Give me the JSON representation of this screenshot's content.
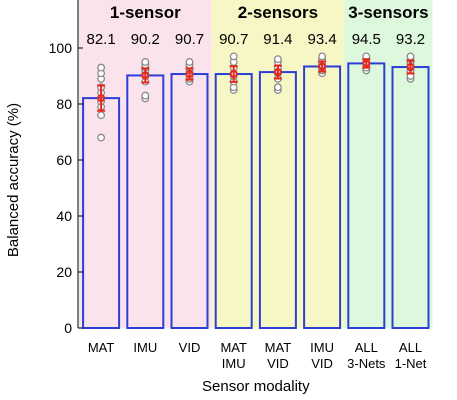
{
  "chart_data": {
    "type": "bar",
    "xlabel": "Sensor modality",
    "ylabel": "Balanced accuracy (%)",
    "ylim": [
      0,
      100
    ],
    "yticks": [
      0,
      20,
      40,
      60,
      80,
      100
    ],
    "grid": false,
    "groups": [
      {
        "title": "1-sensor",
        "first": 0,
        "last": 2,
        "color": "#fbe3ee"
      },
      {
        "title": "2-sensors",
        "first": 3,
        "last": 5,
        "color": "#f7f7c6"
      },
      {
        "title": "3-sensors",
        "first": 6,
        "last": 7,
        "color": "#ddf8dc"
      }
    ],
    "categories": [
      [
        "MAT"
      ],
      [
        "IMU"
      ],
      [
        "VID"
      ],
      [
        "MAT",
        "IMU"
      ],
      [
        "MAT",
        "VID"
      ],
      [
        "IMU",
        "VID"
      ],
      [
        "ALL",
        "3-Nets"
      ],
      [
        "ALL",
        "1-Net"
      ]
    ],
    "values": [
      82.1,
      90.2,
      90.7,
      90.7,
      91.4,
      93.4,
      94.5,
      93.2
    ],
    "value_labels": [
      "82.1",
      "90.2",
      "90.7",
      "90.7",
      "91.4",
      "93.4",
      "94.5",
      "93.2"
    ],
    "error": [
      4.5,
      2.5,
      2.0,
      2.8,
      2.3,
      1.8,
      1.5,
      2.3
    ],
    "points": [
      [
        68,
        76,
        79,
        81,
        84,
        86,
        89,
        91,
        93
      ],
      [
        82,
        83,
        88,
        90,
        91,
        92,
        93,
        94,
        95
      ],
      [
        88,
        89,
        90,
        91,
        92,
        93,
        94,
        95
      ],
      [
        85,
        86,
        88,
        90,
        91,
        93,
        95,
        97
      ],
      [
        85,
        86,
        89,
        91,
        92,
        93,
        95,
        96
      ],
      [
        91,
        92,
        93,
        94,
        95,
        96,
        97
      ],
      [
        92,
        93,
        94,
        95,
        96,
        97
      ],
      [
        89,
        90,
        92,
        93,
        94,
        95,
        96,
        97
      ]
    ],
    "colors": {
      "bar_edge": "#2b3fd6",
      "error_bar": "#e8261c",
      "point_edge": "#8a8a8a",
      "axis": "#000000"
    }
  }
}
